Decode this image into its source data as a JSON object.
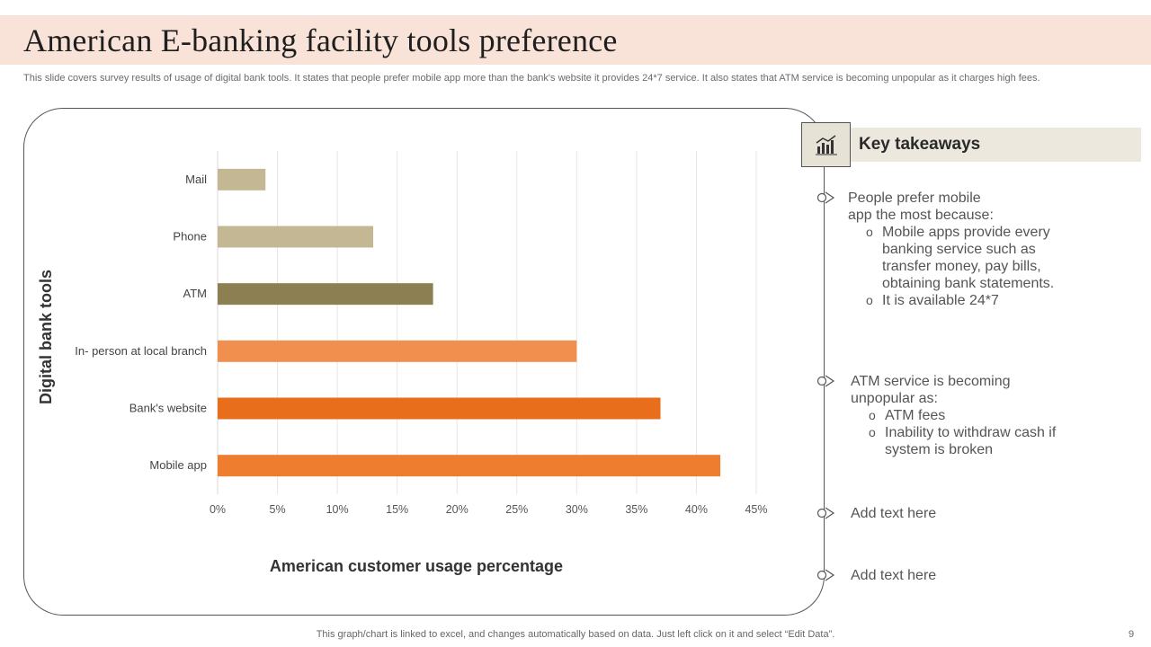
{
  "slide": {
    "title": "American E-banking facility tools preference",
    "subtitle": "This slide covers survey results of usage of digital bank tools. It states that people prefer mobile app more than the bank's website it provides 24*7 service. It also states that ATM  service is becoming unpopular as it charges high fees.",
    "footer": "This graph/chart is linked to excel,  and changes automatically based on data. Just left click on it and select “Edit Data”.",
    "page_number": "9"
  },
  "chart_data": {
    "type": "bar",
    "orientation": "horizontal",
    "categories": [
      "Mail",
      "Phone",
      "ATM",
      "In- person at local branch",
      "Bank's website",
      "Mobile app"
    ],
    "values": [
      4,
      13,
      18,
      30,
      37,
      42
    ],
    "colors": [
      "#c4b894",
      "#c4b894",
      "#8c8052",
      "#f08f4e",
      "#e86e1c",
      "#ef7d30"
    ],
    "xlabel": "American customer usage percentage",
    "ylabel": "Digital bank tools",
    "xlim": [
      0,
      45
    ],
    "xticks": [
      "0%",
      "5%",
      "10%",
      "15%",
      "20%",
      "25%",
      "30%",
      "35%",
      "40%",
      "45%"
    ],
    "grid": true
  },
  "takeaways": {
    "heading": "Key takeaways",
    "items": [
      {
        "lines": [
          "People prefer mobile",
          "app the most because:"
        ],
        "subs": [
          [
            "Mobile apps provide every",
            "banking service such as",
            "transfer money, pay bills,",
            "obtaining bank statements."
          ],
          [
            "It is available 24*7"
          ]
        ]
      },
      {
        "lines": [
          "ATM service is becoming",
          "unpopular  as:"
        ],
        "subs": [
          [
            "ATM fees"
          ],
          [
            "Inability to withdraw cash if",
            "system is broken"
          ]
        ]
      },
      {
        "lines": [
          "Add text here"
        ],
        "subs": []
      },
      {
        "lines": [
          "Add text here"
        ],
        "subs": []
      }
    ]
  }
}
